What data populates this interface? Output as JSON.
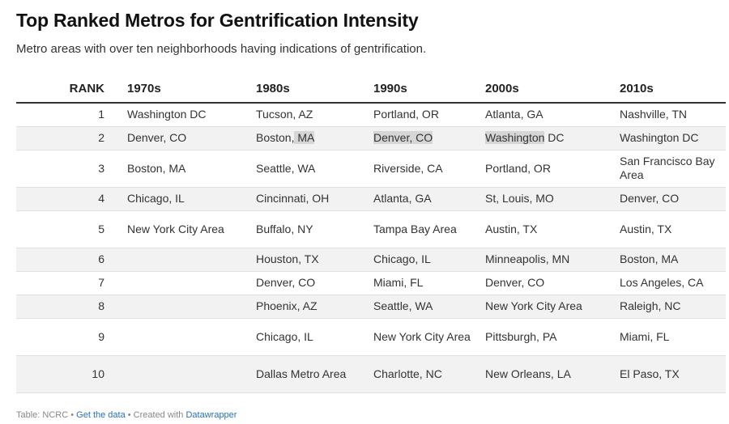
{
  "title": "Top Ranked Metros for Gentrification Intensity",
  "subtitle": "Metro areas with over ten neighborhoods having indications of gentrification.",
  "columns": [
    "RANK",
    "1970s",
    "1980s",
    "1990s",
    "2000s",
    "2010s"
  ],
  "rows": [
    [
      "1",
      "Washington DC",
      "Tucson, AZ",
      "Portland, OR",
      "Atlanta, GA",
      "Nashville, TN"
    ],
    [
      "2",
      "Denver, CO",
      "Boston, MA",
      "Denver, CO",
      "Washington DC",
      "Washington DC"
    ],
    [
      "3",
      "Boston, MA",
      "Seattle, WA",
      "Riverside, CA",
      "Portland, OR",
      "San Francisco Bay Area"
    ],
    [
      "4",
      "Chicago, IL",
      "Cincinnati, OH",
      "Atlanta, GA",
      "St, Louis, MO",
      "Denver, CO"
    ],
    [
      "5",
      "New York City Area",
      "Buffalo, NY",
      "Tampa Bay Area",
      "Austin, TX",
      "Austin, TX"
    ],
    [
      "6",
      "",
      "Houston, TX",
      "Chicago, IL",
      "Minneapolis, MN",
      "Boston, MA"
    ],
    [
      "7",
      "",
      "Denver, CO",
      "Miami, FL",
      "Denver, CO",
      "Los Angeles, CA"
    ],
    [
      "8",
      "",
      "Phoenix, AZ",
      "Seattle, WA",
      "New York City Area",
      "Raleigh, NC"
    ],
    [
      "9",
      "",
      "Chicago, IL",
      "New York City Area",
      "Pittsburgh, PA",
      "Miami, FL"
    ],
    [
      "10",
      "",
      "Dallas Metro Area",
      "Charlotte, NC",
      "New Orleans, LA",
      "El Paso, TX"
    ]
  ],
  "chart_data": {
    "type": "table",
    "title": "Top Ranked Metros for Gentrification Intensity",
    "subtitle": "Metro areas with over ten neighborhoods having indications of gentrification.",
    "columns": [
      "RANK",
      "1970s",
      "1980s",
      "1990s",
      "2000s",
      "2010s"
    ],
    "rows": [
      [
        "1",
        "Washington DC",
        "Tucson, AZ",
        "Portland, OR",
        "Atlanta, GA",
        "Nashville, TN"
      ],
      [
        "2",
        "Denver, CO",
        "Boston, MA",
        "Denver, CO",
        "Washington DC",
        "Washington DC"
      ],
      [
        "3",
        "Boston, MA",
        "Seattle, WA",
        "Riverside, CA",
        "Portland, OR",
        "San Francisco Bay Area"
      ],
      [
        "4",
        "Chicago, IL",
        "Cincinnati, OH",
        "Atlanta, GA",
        "St, Louis, MO",
        "Denver, CO"
      ],
      [
        "5",
        "New York City Area",
        "Buffalo, NY",
        "Tampa Bay Area",
        "Austin, TX",
        "Austin, TX"
      ],
      [
        "6",
        "",
        "Houston, TX",
        "Chicago, IL",
        "Minneapolis, MN",
        "Boston, MA"
      ],
      [
        "7",
        "",
        "Denver, CO",
        "Miami, FL",
        "Denver, CO",
        "Los Angeles, CA"
      ],
      [
        "8",
        "",
        "Phoenix, AZ",
        "Seattle, WA",
        "New York City Area",
        "Raleigh, NC"
      ],
      [
        "9",
        "",
        "Chicago, IL",
        "New York City Area",
        "Pittsburgh, PA",
        "Miami, FL"
      ],
      [
        "10",
        "",
        "Dallas Metro Area",
        "Charlotte, NC",
        "New Orleans, LA",
        "El Paso, TX"
      ]
    ]
  },
  "footer": {
    "source": "Table: NCRC",
    "sep1": " • ",
    "data_link": "Get the data",
    "sep2": " • Created with ",
    "tool_link": "Datawrapper"
  },
  "colors": {
    "stripe": "#f2f2f2",
    "highlight": "#d6d6d6",
    "link": "#2a6fbd"
  }
}
